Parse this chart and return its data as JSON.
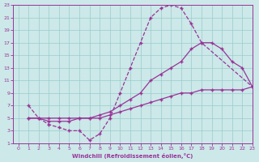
{
  "xlabel": "Windchill (Refroidissement éolien,°C)",
  "xlim": [
    -0.5,
    23
  ],
  "ylim": [
    1,
    23
  ],
  "xticks": [
    0,
    1,
    2,
    3,
    4,
    5,
    6,
    7,
    8,
    9,
    10,
    11,
    12,
    13,
    14,
    15,
    16,
    17,
    18,
    19,
    20,
    21,
    22,
    23
  ],
  "yticks": [
    1,
    3,
    5,
    7,
    9,
    11,
    13,
    15,
    17,
    19,
    21,
    23
  ],
  "bg_color": "#cce8e8",
  "line_color": "#993399",
  "grid_color": "#99cccc",
  "line1_x": [
    1,
    2,
    3,
    4,
    5,
    6,
    7,
    8,
    9,
    10,
    11,
    12,
    13,
    14,
    15,
    16,
    17,
    18,
    23
  ],
  "line1_y": [
    7,
    5,
    4,
    3.5,
    3,
    3,
    1.5,
    2.5,
    5,
    9,
    13,
    17,
    21,
    22.5,
    23,
    22.5,
    20,
    17,
    10
  ],
  "line2_x": [
    1,
    2,
    3,
    4,
    5,
    6,
    7,
    8,
    9,
    10,
    11,
    12,
    13,
    14,
    15,
    16,
    17,
    18,
    19,
    20,
    21,
    22,
    23
  ],
  "line2_y": [
    5,
    5,
    4.5,
    4.5,
    4.5,
    5,
    5,
    5.5,
    6,
    7,
    8,
    9,
    11,
    12,
    13,
    14,
    16,
    17,
    17,
    16,
    14,
    13,
    10
  ],
  "line3_x": [
    1,
    2,
    3,
    4,
    5,
    6,
    7,
    8,
    9,
    10,
    11,
    12,
    13,
    14,
    15,
    16,
    17,
    18,
    19,
    20,
    21,
    22,
    23
  ],
  "line3_y": [
    5,
    5,
    5,
    5,
    5,
    5,
    5,
    5,
    5.5,
    6,
    6.5,
    7,
    7.5,
    8,
    8.5,
    9,
    9,
    9.5,
    9.5,
    9.5,
    9.5,
    9.5,
    10
  ]
}
